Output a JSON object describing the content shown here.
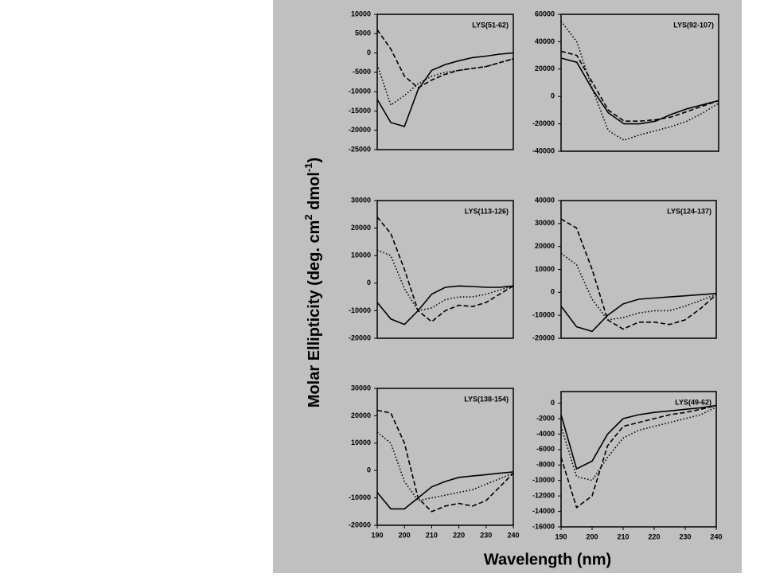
{
  "figure": {
    "ylabel": [
      "Molar Ellipticity (deg. cm",
      "2",
      " dmol",
      "-1",
      ")"
    ],
    "xlabel": "Wavelength (nm)"
  },
  "chart_data": [
    {
      "type": "line",
      "title": "LYS(51-62)",
      "x": [
        190,
        195,
        200,
        205,
        210,
        215,
        220,
        225,
        230,
        235,
        240
      ],
      "xlim": [
        190,
        240
      ],
      "ylim": [
        -25000,
        10000
      ],
      "yticks": [
        -25000,
        -20000,
        -15000,
        -10000,
        -5000,
        0,
        5000,
        10000
      ],
      "series": [
        {
          "color": "#000000",
          "dash": "solid",
          "values": [
            -12000,
            -18000,
            -19000,
            -9500,
            -4500,
            -3000,
            -2000,
            -1200,
            -800,
            -300,
            0
          ]
        },
        {
          "color": "#000000",
          "dash": "dashed",
          "values": [
            6000,
            1000,
            -6000,
            -9000,
            -7000,
            -5500,
            -4500,
            -4000,
            -3500,
            -2500,
            -1500
          ]
        },
        {
          "color": "#000000",
          "dash": "dotted",
          "values": [
            -3000,
            -13500,
            -11000,
            -8000,
            -6000,
            -5000,
            -4500,
            -4000,
            -3500,
            -2500,
            -1500
          ]
        }
      ]
    },
    {
      "type": "line",
      "title": "LYS(92-107)",
      "x": [
        190,
        195,
        200,
        205,
        210,
        215,
        220,
        225,
        230,
        235,
        240
      ],
      "xlim": [
        190,
        240
      ],
      "ylim": [
        -40000,
        60000
      ],
      "yticks": [
        -40000,
        -20000,
        0,
        20000,
        40000,
        60000
      ],
      "series": [
        {
          "color": "#000000",
          "dash": "solid",
          "values": [
            28000,
            25000,
            5000,
            -12000,
            -20000,
            -20000,
            -18000,
            -13000,
            -9000,
            -6000,
            -3000
          ]
        },
        {
          "color": "#000000",
          "dash": "dashed",
          "values": [
            33000,
            30000,
            10000,
            -10000,
            -18000,
            -18000,
            -17000,
            -15000,
            -11000,
            -7000,
            -3000
          ]
        },
        {
          "color": "#000000",
          "dash": "dotted",
          "values": [
            55000,
            40000,
            5000,
            -25000,
            -32000,
            -28000,
            -25000,
            -22000,
            -18000,
            -12000,
            -5000
          ]
        }
      ]
    },
    {
      "type": "line",
      "title": "LYS(113-126)",
      "x": [
        190,
        195,
        200,
        205,
        210,
        215,
        220,
        225,
        230,
        235,
        240
      ],
      "xlim": [
        190,
        240
      ],
      "ylim": [
        -20000,
        30000
      ],
      "yticks": [
        -20000,
        -10000,
        0,
        10000,
        20000,
        30000
      ],
      "series": [
        {
          "color": "#000000",
          "dash": "solid",
          "values": [
            -7000,
            -13000,
            -15000,
            -10000,
            -4000,
            -1500,
            -1000,
            -1200,
            -1500,
            -1500,
            -1000
          ]
        },
        {
          "color": "#000000",
          "dash": "dashed",
          "values": [
            24000,
            18000,
            5000,
            -10000,
            -14000,
            -10000,
            -8000,
            -8500,
            -7000,
            -4000,
            -1000
          ]
        },
        {
          "color": "#000000",
          "dash": "dotted",
          "values": [
            12000,
            10000,
            -2000,
            -10000,
            -9000,
            -6000,
            -5000,
            -5000,
            -4000,
            -2500,
            -1000
          ]
        }
      ]
    },
    {
      "type": "line",
      "title": "LYS(124-137)",
      "x": [
        190,
        195,
        200,
        205,
        210,
        215,
        220,
        225,
        230,
        235,
        240
      ],
      "xlim": [
        190,
        240
      ],
      "ylim": [
        -20000,
        40000
      ],
      "yticks": [
        -20000,
        -10000,
        0,
        10000,
        20000,
        30000,
        40000
      ],
      "series": [
        {
          "color": "#000000",
          "dash": "solid",
          "values": [
            -6000,
            -15000,
            -17000,
            -10000,
            -5000,
            -3000,
            -2500,
            -2000,
            -1500,
            -1000,
            -500
          ]
        },
        {
          "color": "#000000",
          "dash": "dashed",
          "values": [
            32000,
            28000,
            10000,
            -12000,
            -16000,
            -13000,
            -13000,
            -14000,
            -12000,
            -7000,
            -1000
          ]
        },
        {
          "color": "#000000",
          "dash": "dotted",
          "values": [
            17000,
            12000,
            -3000,
            -12000,
            -11000,
            -9000,
            -8000,
            -8000,
            -6000,
            -3500,
            -1000
          ]
        }
      ]
    },
    {
      "type": "line",
      "title": "LYS(138-154)",
      "x": [
        190,
        195,
        200,
        205,
        210,
        215,
        220,
        225,
        230,
        235,
        240
      ],
      "xlim": [
        190,
        240
      ],
      "xticks": [
        190,
        200,
        210,
        220,
        230,
        240
      ],
      "ylim": [
        -20000,
        30000
      ],
      "yticks": [
        -20000,
        -10000,
        0,
        10000,
        20000,
        30000
      ],
      "series": [
        {
          "color": "#000000",
          "dash": "solid",
          "values": [
            -8000,
            -14000,
            -14000,
            -10000,
            -6000,
            -4000,
            -2500,
            -2000,
            -1500,
            -1000,
            -500
          ]
        },
        {
          "color": "#000000",
          "dash": "dashed",
          "values": [
            22000,
            21000,
            10000,
            -10000,
            -15000,
            -13000,
            -12000,
            -13000,
            -11000,
            -6000,
            -1000
          ]
        },
        {
          "color": "#000000",
          "dash": "dotted",
          "values": [
            14000,
            10000,
            -4000,
            -11000,
            -10000,
            -9000,
            -8000,
            -7000,
            -5000,
            -3000,
            -1000
          ]
        }
      ]
    },
    {
      "type": "line",
      "title": "LYS(49-62)",
      "x": [
        190,
        195,
        200,
        205,
        210,
        215,
        220,
        225,
        230,
        235,
        240
      ],
      "xlim": [
        190,
        240
      ],
      "xticks": [
        190,
        200,
        210,
        220,
        230,
        240
      ],
      "ylim": [
        -16000,
        1500
      ],
      "yticks": [
        -16000,
        -14000,
        -12000,
        -10000,
        -8000,
        -6000,
        -4000,
        -2000,
        0
      ],
      "series": [
        {
          "color": "#000000",
          "dash": "solid",
          "values": [
            -1500,
            -8500,
            -7500,
            -4000,
            -2000,
            -1500,
            -1200,
            -1000,
            -800,
            -600,
            -300
          ]
        },
        {
          "color": "#000000",
          "dash": "dashed",
          "values": [
            -7000,
            -13500,
            -12000,
            -5500,
            -3000,
            -2500,
            -2000,
            -1500,
            -1200,
            -800,
            -300
          ]
        },
        {
          "color": "#000000",
          "dash": "dotted",
          "values": [
            -3000,
            -9500,
            -10000,
            -7000,
            -4500,
            -3500,
            -3000,
            -2500,
            -2000,
            -1500,
            -500
          ]
        }
      ]
    }
  ]
}
